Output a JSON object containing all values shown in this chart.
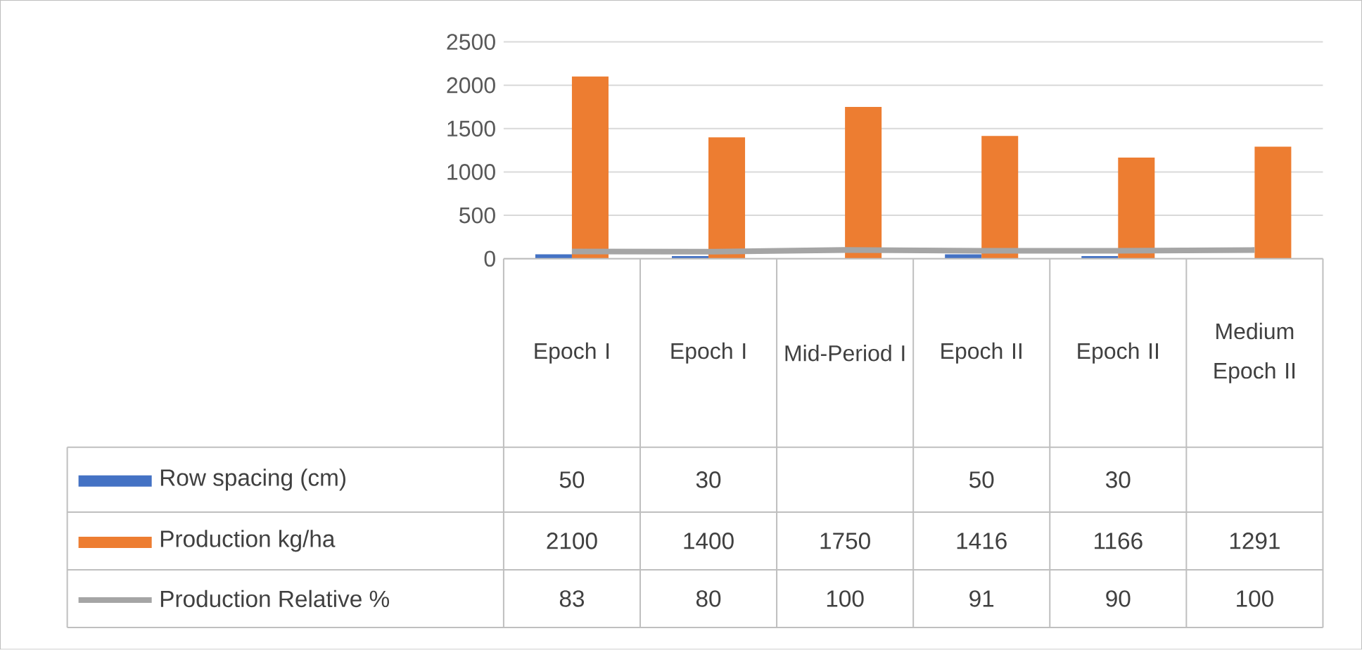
{
  "chart_data": {
    "type": "bar",
    "categories": [
      "Epoch I",
      "Epoch I",
      "Mid-Period I",
      "Epoch II",
      "Epoch II",
      "Medium Epoch II"
    ],
    "series": [
      {
        "name": "Row spacing (cm)",
        "color": "#4472c4",
        "values": [
          50,
          30,
          null,
          50,
          30,
          null
        ]
      },
      {
        "name": "Production kg/ha",
        "color": "#ed7d31",
        "values": [
          2100,
          1400,
          1750,
          1416,
          1166,
          1291
        ]
      },
      {
        "name": "Production Relative %",
        "type": "line",
        "color": "#a5a5a5",
        "values": [
          83,
          80,
          100,
          91,
          90,
          100
        ]
      }
    ],
    "ylim": [
      0,
      2500
    ],
    "yticks": [
      0,
      500,
      1000,
      1500,
      2000,
      2500
    ],
    "grid": "y",
    "legend": "bottom",
    "data_labels": true
  }
}
